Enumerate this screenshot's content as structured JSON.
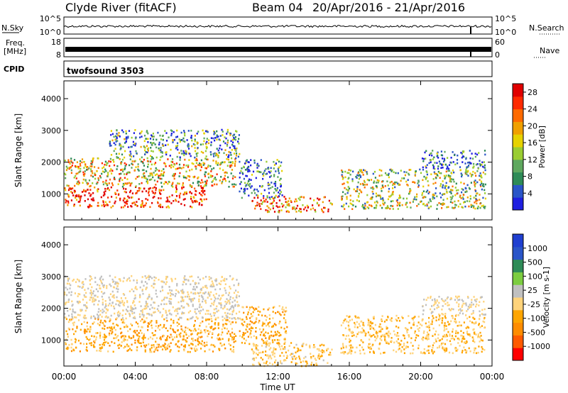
{
  "header": {
    "title": "Clyde River (fitACF)",
    "beam": "Beam 04",
    "date_range": "20/Apr/2016 - 21/Apr/2016"
  },
  "strips": {
    "nsky_label": "N.Sky",
    "nsky_ticks": [
      "10^5",
      "10^0"
    ],
    "nsearch_label": "N.Search",
    "nsearch_ticks": [
      "10^5",
      "10^0"
    ],
    "freq_label": "Freq.",
    "freq_unit": "[MHz]",
    "freq_ticks": [
      "18",
      "8"
    ],
    "nave_label": "Nave",
    "nave_ticks": [
      "60",
      "0"
    ],
    "cpid_label": "CPID",
    "cpid_value": "twofsound 3503"
  },
  "colors": {
    "power": [
      "#1f1fe0",
      "#2a55c8",
      "#2e8b57",
      "#5fa85f",
      "#9acd32",
      "#e6d200",
      "#f0a000",
      "#ff6a00",
      "#ff2a00",
      "#e00000"
    ],
    "velocity": [
      "#ff0000",
      "#ff5a00",
      "#ff8c00",
      "#ffa500",
      "#ffd37a",
      "#c0c0c0",
      "#7ccd40",
      "#2e8b57",
      "#2a55c8",
      "#1f3fd0"
    ]
  },
  "chart_data": [
    {
      "type": "heatmap",
      "name": "power",
      "xlabel": "",
      "ylabel": "Slant Range [km]",
      "x_ticks": [
        "00:00",
        "04:00",
        "08:00",
        "12:00",
        "16:00",
        "20:00",
        "00:00"
      ],
      "xlim": [
        0,
        24
      ],
      "y_ticks": [
        1000,
        2000,
        3000,
        4000
      ],
      "ylim": [
        180,
        4560
      ],
      "colorbar": {
        "label": "Power [dB]",
        "ticks": [
          "4",
          "8",
          "12",
          "16",
          "20",
          "24",
          "28"
        ],
        "range": [
          0,
          30
        ]
      },
      "regions": [
        {
          "t0": 0.0,
          "t1": 8.0,
          "r0": 600,
          "r1": 1250,
          "level": 0.88
        },
        {
          "t0": 0.0,
          "t1": 9.6,
          "r0": 1250,
          "r1": 2150,
          "level": 0.55
        },
        {
          "t0": 2.5,
          "t1": 9.8,
          "r0": 2150,
          "r1": 3050,
          "level": 0.3
        },
        {
          "t0": 9.8,
          "t1": 12.2,
          "r0": 900,
          "r1": 2100,
          "level": 0.25
        },
        {
          "t0": 10.5,
          "t1": 15.0,
          "r0": 450,
          "r1": 950,
          "level": 0.75
        },
        {
          "t0": 15.5,
          "t1": 23.6,
          "r0": 550,
          "r1": 1800,
          "level": 0.45
        },
        {
          "t0": 20.0,
          "t1": 23.6,
          "r0": 1800,
          "r1": 2400,
          "level": 0.2
        }
      ]
    },
    {
      "type": "heatmap",
      "name": "velocity",
      "xlabel": "Time UT",
      "ylabel": "Slant Range [km]",
      "x_ticks": [
        "00:00",
        "04:00",
        "08:00",
        "12:00",
        "16:00",
        "20:00",
        "00:00"
      ],
      "xlim": [
        0,
        24
      ],
      "y_ticks": [
        1000,
        2000,
        3000,
        4000
      ],
      "ylim": [
        180,
        4560
      ],
      "colorbar": {
        "label": "Velocity [m s-1]",
        "ticks": [
          "1000",
          "500",
          "100",
          "25",
          "-25",
          "-100",
          "-500",
          "-1000"
        ],
        "range": [
          -1000,
          1000
        ]
      },
      "regions": [
        {
          "t0": 0.0,
          "t1": 9.6,
          "r0": 650,
          "r1": 1700,
          "level": -300
        },
        {
          "t0": 0.0,
          "t1": 9.8,
          "r0": 1700,
          "r1": 3050,
          "level": 0
        },
        {
          "t0": 9.8,
          "t1": 12.5,
          "r0": 900,
          "r1": 2100,
          "level": -300
        },
        {
          "t0": 10.5,
          "t1": 15.0,
          "r0": 200,
          "r1": 950,
          "level": -150
        },
        {
          "t0": 15.5,
          "t1": 23.6,
          "r0": 600,
          "r1": 1800,
          "level": -200
        },
        {
          "t0": 20.0,
          "t1": 23.6,
          "r0": 1800,
          "r1": 2400,
          "level": 0
        }
      ]
    }
  ]
}
